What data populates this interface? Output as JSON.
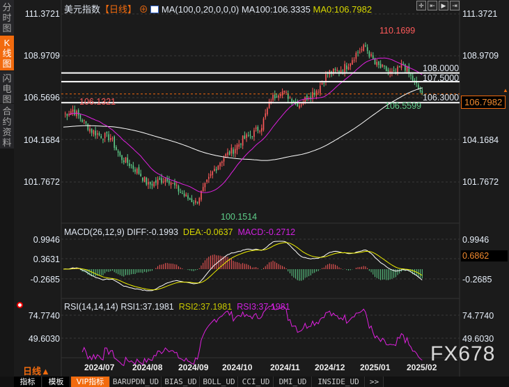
{
  "sidebar": {
    "items": [
      {
        "label": "分时图",
        "active": false
      },
      {
        "label": "K线图",
        "active": true
      },
      {
        "label": "闪电图",
        "active": false
      },
      {
        "label": "合约资料",
        "active": false
      }
    ]
  },
  "header": {
    "symbol": "美元指数",
    "period": "【日线】",
    "ma_params": "MA(100,0,20,0,0,0)",
    "ma100": "MA100:106.3335",
    "ma0": "MA0:106.7982"
  },
  "toolbar": {
    "icons": [
      "crosshair-icon",
      "zoom-start-icon",
      "play-icon",
      "zoom-end-icon"
    ]
  },
  "price_axis": {
    "left": [
      "111.3721",
      "108.9709",
      "106.5696",
      "104.1684",
      "101.7672"
    ],
    "right": [
      "111.3721",
      "108.9709",
      "104.1684",
      "101.7672"
    ],
    "current": "106.7982"
  },
  "annotations": {
    "high": "110.1699",
    "low": "100.1514",
    "left_high": "106.1321",
    "recent_low": "106.5599"
  },
  "levels": [
    {
      "label": "108.0000",
      "value": 108.0
    },
    {
      "label": "107.5000",
      "value": 107.5
    },
    {
      "label": "106.3000",
      "value": 106.3
    }
  ],
  "macd": {
    "title": "MACD(26,12,9)",
    "diff": "DIFF:-0.1993",
    "dea": "DEA:-0.0637",
    "macd": "MACD:-0.2712",
    "axis": [
      "0.9946",
      "0.3631",
      "-0.2685"
    ],
    "current": "0.6862"
  },
  "rsi": {
    "title": "RSI(14,14,14)",
    "rsi1": "RSI1:37.1981",
    "rsi2": "RSI2:37.1981",
    "rsi3": "RSI3:37.1981",
    "axis": [
      "74.7740",
      "49.6030"
    ]
  },
  "period_label": "日线▲",
  "months": [
    "2024/07",
    "2024/08",
    "2024/09",
    "2024/10",
    "2024/11",
    "2024/12",
    "2025/01",
    "2025/02"
  ],
  "watermark": "FX678",
  "tabs": [
    "指标",
    "模板",
    "VIP指标",
    "BARUPDN_UD",
    "BIAS_UD",
    "BOLL_UD",
    "CCI_UD",
    "DMI_UD",
    "INSIDE_UD",
    ">>"
  ],
  "colors": {
    "up": "#ff5a5a",
    "down": "#5fcf8a",
    "ma20": "#e020e0",
    "ma100": "#ffffff",
    "dea": "#f0f000",
    "accent": "#f26b0e"
  },
  "chart_data": {
    "type": "candlestick",
    "weekly_closes": [
      105.6,
      105.9,
      105.3,
      104.7,
      104.4,
      104.3,
      103.2,
      102.8,
      102.3,
      101.6,
      101.8,
      102.0,
      101.4,
      100.9,
      100.6,
      101.5,
      102.5,
      103.2,
      103.6,
      104.2,
      104.5,
      105.0,
      106.5,
      107.0,
      106.6,
      106.2,
      106.7,
      107.1,
      108.0,
      108.1,
      108.4,
      109.1,
      109.5,
      108.5,
      108.2,
      107.9,
      108.5,
      107.6,
      106.8
    ],
    "ylim": [
      100.0,
      111.3721
    ]
  }
}
